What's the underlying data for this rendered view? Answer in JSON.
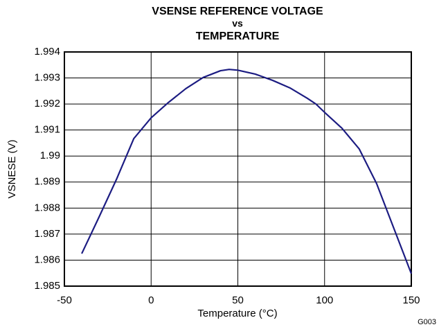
{
  "chart_data": {
    "type": "line",
    "title": [
      "VSENSE REFERENCE VOLTAGE",
      "vs",
      "TEMPERATURE"
    ],
    "x_label": "Temperature (°C)",
    "y_label": "VSNESE (V)",
    "annotation": "G003",
    "x": [
      -40,
      -30,
      -20,
      -10,
      0,
      10,
      20,
      30,
      40,
      45,
      50,
      60,
      70,
      80,
      90,
      95,
      100,
      110,
      120,
      130,
      140,
      150
    ],
    "series": [
      {
        "name": "VSENSE",
        "color": "#1c1c82",
        "values": [
          1.98625,
          1.98766,
          1.9891,
          1.99067,
          1.99147,
          1.99206,
          1.99259,
          1.99302,
          1.99328,
          1.99333,
          1.9933,
          1.99315,
          1.99291,
          1.99262,
          1.99222,
          1.992,
          1.99168,
          1.99107,
          1.99027,
          1.98894,
          1.98721,
          1.98548
        ]
      }
    ],
    "xlim": [
      -50,
      150
    ],
    "xticks": [
      -50,
      0,
      50,
      100,
      150
    ],
    "ylim": [
      1.985,
      1.994
    ],
    "yticks": [
      1.985,
      1.986,
      1.987,
      1.988,
      1.989,
      1.99,
      1.991,
      1.992,
      1.993,
      1.994
    ],
    "grid": true
  }
}
